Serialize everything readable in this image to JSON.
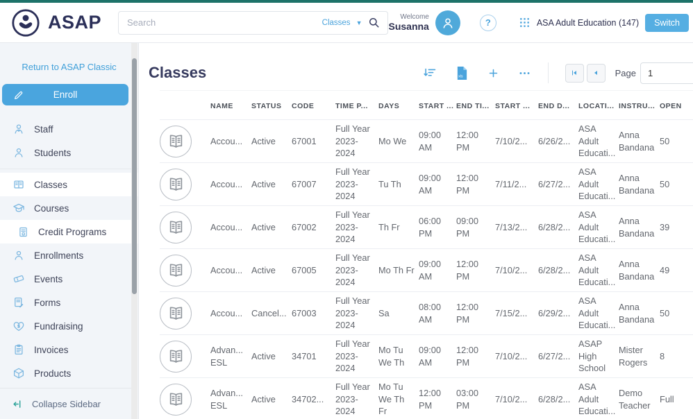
{
  "colors": {
    "top_strip_teal": "#1d7269",
    "brand_navy": "#2b2f58",
    "accent_blue": "#4aa3dc",
    "sidebar_icon_blue": "#7cb7e0",
    "collapse_teal": "#2aa198"
  },
  "header": {
    "logo_text": "ASAP",
    "search": {
      "placeholder": "Search",
      "scope": "Classes"
    },
    "welcome_label": "Welcome",
    "user_name": "Susanna",
    "help_label": "?",
    "org_label": "ASA Adult Education (147)",
    "switch_label": "Switch"
  },
  "sidebar": {
    "return_link": "Return to ASAP Classic",
    "enroll_label": "Enroll",
    "items": [
      {
        "label": "Staff",
        "icon": "staff-icon"
      },
      {
        "label": "Students",
        "icon": "students-icon"
      },
      {
        "label": "Classes",
        "icon": "classes-icon",
        "active": true
      },
      {
        "label": "Courses",
        "icon": "courses-icon"
      },
      {
        "label": "Credit Programs",
        "icon": "credit-programs-icon",
        "sub": true,
        "active": true
      },
      {
        "label": "Enrollments",
        "icon": "enrollments-icon"
      },
      {
        "label": "Events",
        "icon": "events-icon"
      },
      {
        "label": "Forms",
        "icon": "forms-icon"
      },
      {
        "label": "Fundraising",
        "icon": "fundraising-icon"
      },
      {
        "label": "Invoices",
        "icon": "invoices-icon"
      },
      {
        "label": "Products",
        "icon": "products-icon"
      }
    ],
    "collapse_label": "Collapse Sidebar"
  },
  "main": {
    "title": "Classes",
    "toolbar": {
      "icons": [
        "filter-icon",
        "export-xlsx-icon",
        "add-icon",
        "more-icon"
      ],
      "export_icon_label": "xls"
    },
    "pagination": {
      "first_icon": "first-page-icon",
      "prev_icon": "prev-page-icon",
      "page_label": "Page",
      "page_value": "1"
    }
  },
  "table": {
    "row_icon": "open-book-icon",
    "columns": [
      "NAME",
      "STATUS",
      "CODE",
      "TIME P...",
      "DAYS",
      "START ...",
      "END TI...",
      "START ...",
      "END D...",
      "LOCATI...",
      "INSTRU...",
      "OPEN"
    ],
    "rows": [
      {
        "name": "Accou...",
        "status": "Active",
        "code": "67001",
        "time_period": "Full Year 2023- 2024",
        "days": "Mo We",
        "start_time": "09:00 AM",
        "end_time": "12:00 PM",
        "start_date": "7/10/2...",
        "end_date": "6/26/2...",
        "location": "ASA Adult Educati...",
        "instructor": "Anna Bandana",
        "open": "50"
      },
      {
        "name": "Accou...",
        "status": "Active",
        "code": "67007",
        "time_period": "Full Year 2023- 2024",
        "days": "Tu Th",
        "start_time": "09:00 AM",
        "end_time": "12:00 PM",
        "start_date": "7/11/2...",
        "end_date": "6/27/2...",
        "location": "ASA Adult Educati...",
        "instructor": "Anna Bandana",
        "open": "50"
      },
      {
        "name": "Accou...",
        "status": "Active",
        "code": "67002",
        "time_period": "Full Year 2023- 2024",
        "days": "Th Fr",
        "start_time": "06:00 PM",
        "end_time": "09:00 PM",
        "start_date": "7/13/2...",
        "end_date": "6/28/2...",
        "location": "ASA Adult Educati...",
        "instructor": "Anna Bandana",
        "open": "39"
      },
      {
        "name": "Accou...",
        "status": "Active",
        "code": "67005",
        "time_period": "Full Year 2023- 2024",
        "days": "Mo Th Fr",
        "start_time": "09:00 AM",
        "end_time": "12:00 PM",
        "start_date": "7/10/2...",
        "end_date": "6/28/2...",
        "location": "ASA Adult Educati...",
        "instructor": "Anna Bandana",
        "open": "49"
      },
      {
        "name": "Accou...",
        "status": "Cancel...",
        "code": "67003",
        "time_period": "Full Year 2023- 2024",
        "days": "Sa",
        "start_time": "08:00 AM",
        "end_time": "12:00 PM",
        "start_date": "7/15/2...",
        "end_date": "6/29/2...",
        "location": "ASA Adult Educati...",
        "instructor": "Anna Bandana",
        "open": "50"
      },
      {
        "name": "Advan... ESL",
        "status": "Active",
        "code": "34701",
        "time_period": "Full Year 2023- 2024",
        "days": "Mo Tu We Th",
        "start_time": "09:00 AM",
        "end_time": "12:00 PM",
        "start_date": "7/10/2...",
        "end_date": "6/27/2...",
        "location": "ASAP High School",
        "instructor": "Mister Rogers",
        "open": "8"
      },
      {
        "name": "Advan... ESL",
        "status": "Active",
        "code": "34702...",
        "time_period": "Full Year 2023- 2024",
        "days": "Mo Tu We Th Fr",
        "start_time": "12:00 PM",
        "end_time": "03:00 PM",
        "start_date": "7/10/2...",
        "end_date": "6/28/2...",
        "location": "ASA Adult Educati...",
        "instructor": "Demo Teacher",
        "open": "Full"
      }
    ]
  }
}
